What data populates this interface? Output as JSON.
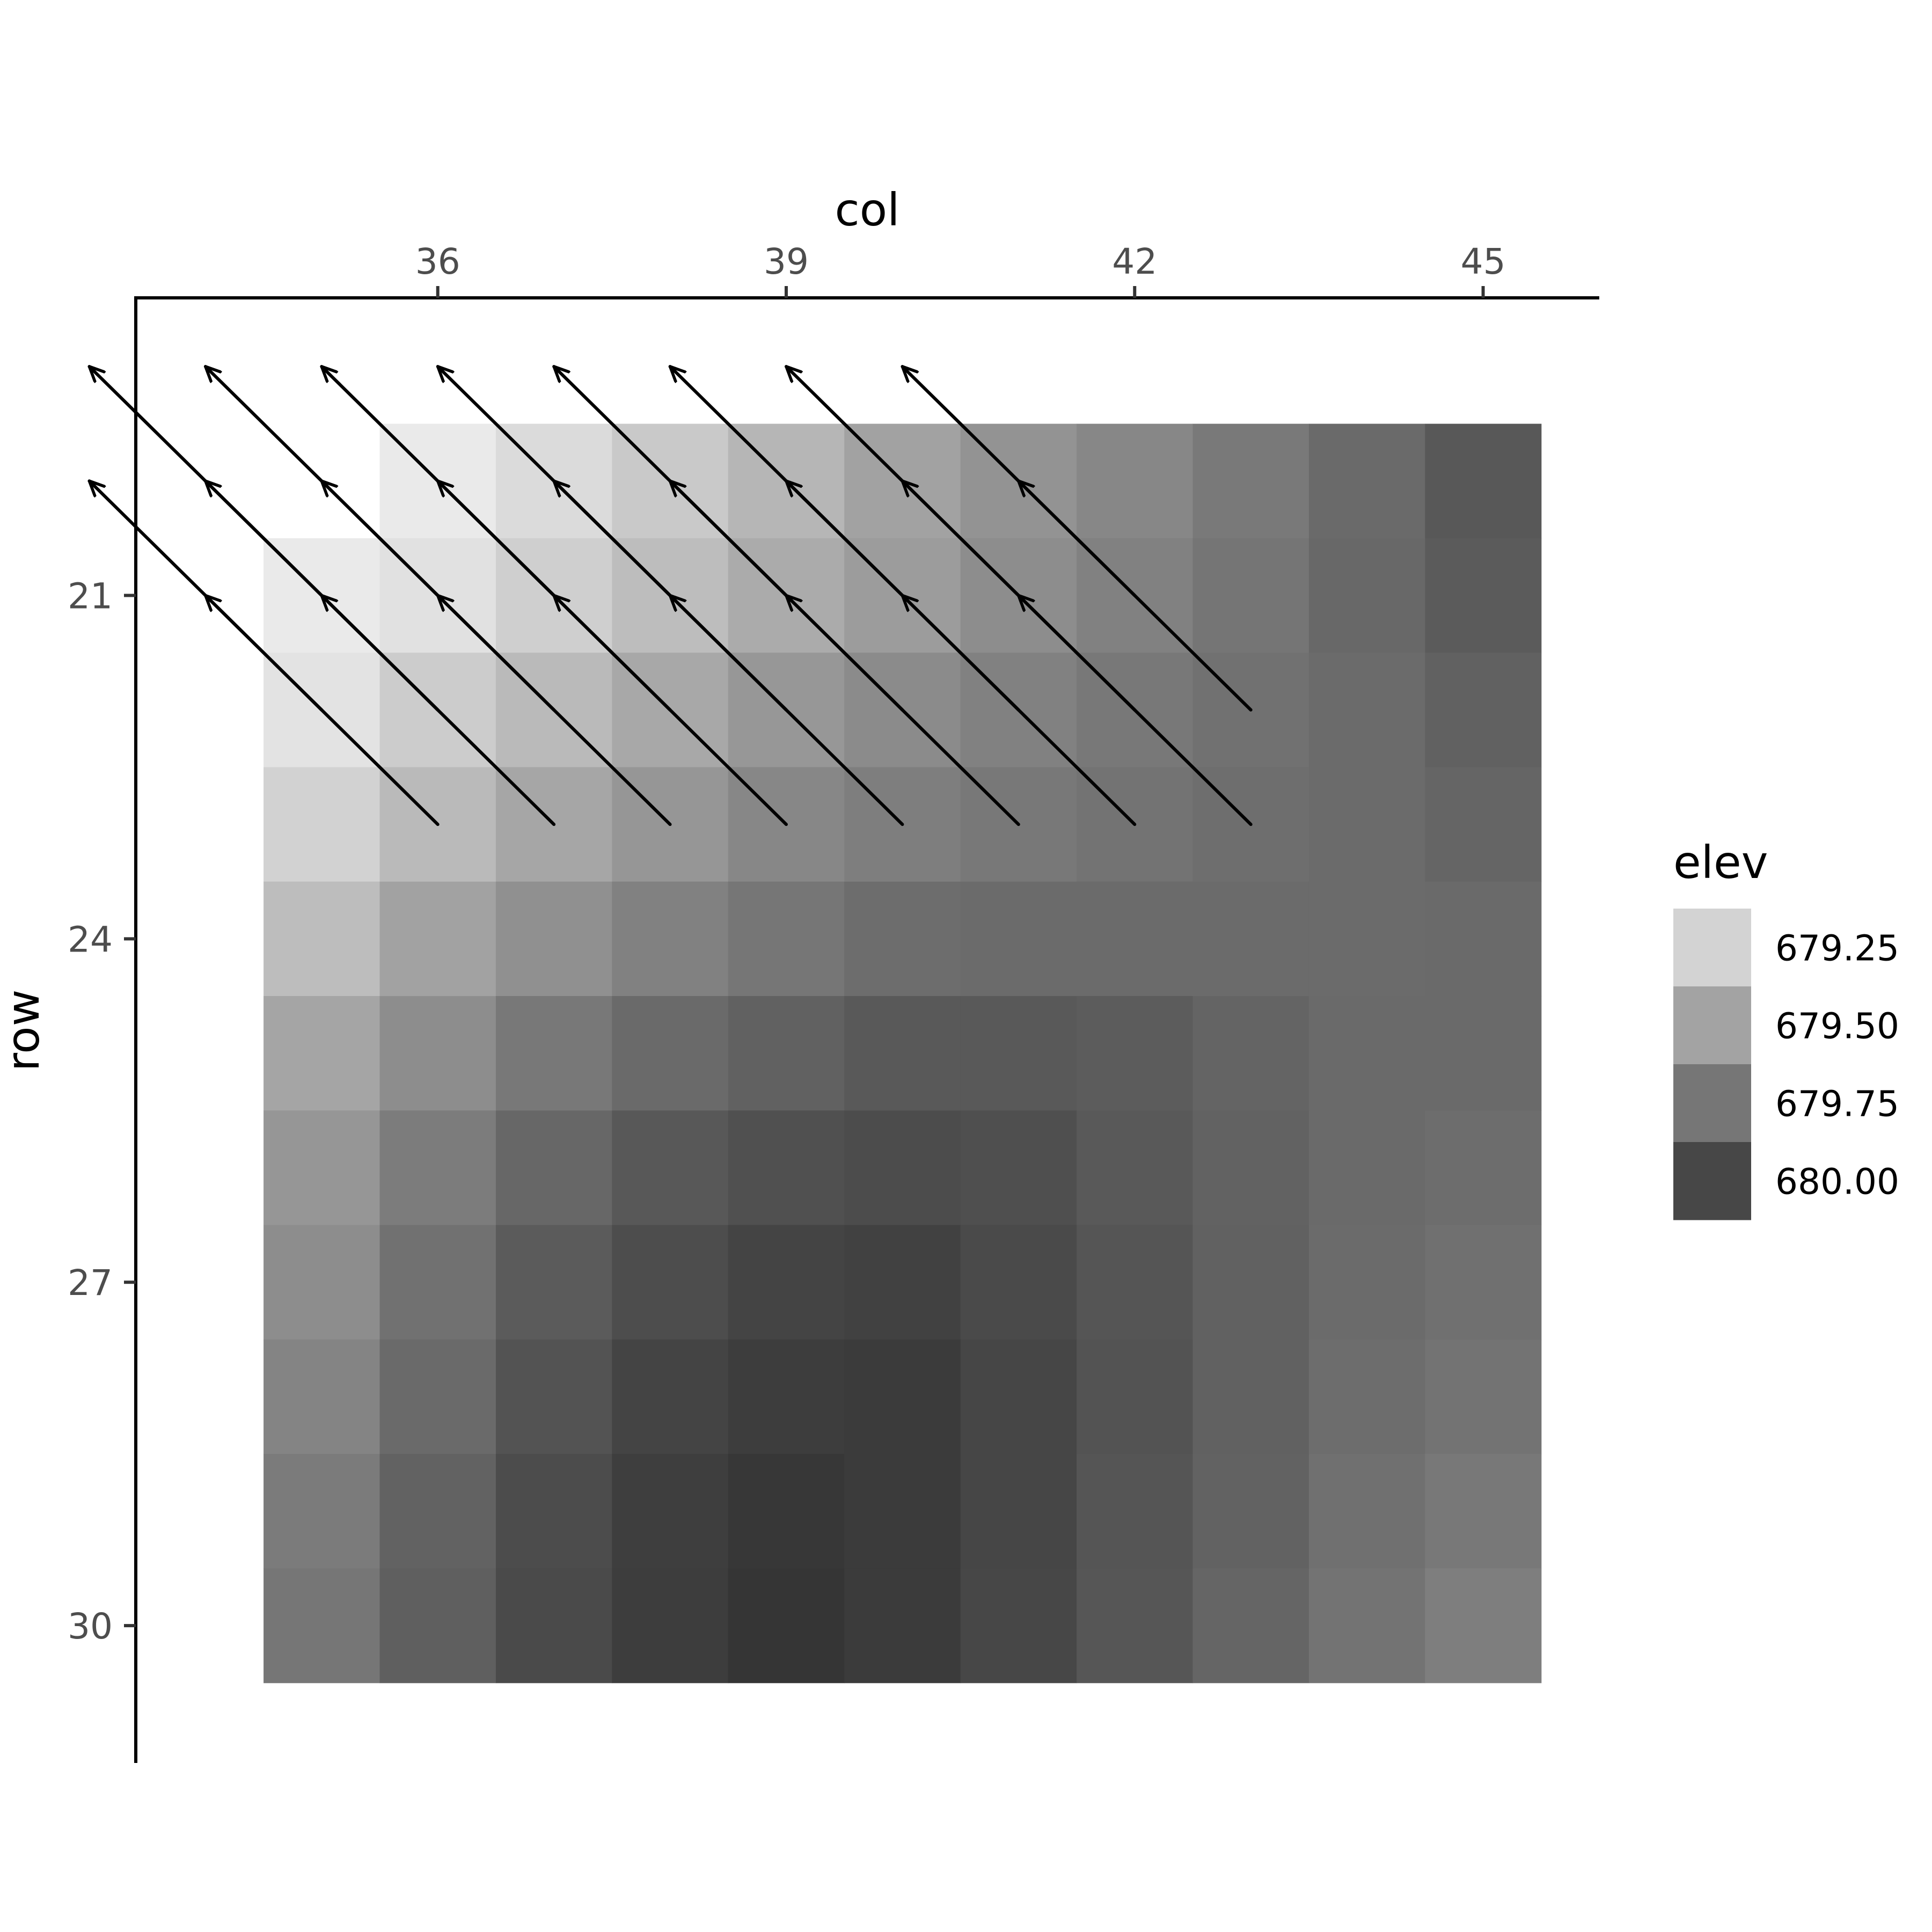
{
  "chart_data": {
    "type": "heatmap",
    "xlabel": "col",
    "ylabel": "row",
    "x_axis_position": "top",
    "y_reversed": true,
    "grid": false,
    "xlim": [
      33.4,
      46.0
    ],
    "ylim": [
      18.4,
      31.2
    ],
    "xticks": [
      36,
      39,
      42,
      45
    ],
    "yticks": [
      21,
      24,
      27,
      30
    ],
    "cols": [
      35,
      36,
      37,
      38,
      39,
      40,
      41,
      42,
      43,
      44,
      45
    ],
    "rows": [
      20,
      21,
      22,
      23,
      24,
      25,
      26,
      27,
      28,
      29,
      30
    ],
    "cells": [
      [
        null,
        679.0,
        679.1,
        679.22,
        679.35,
        679.48,
        679.58,
        679.66,
        679.75,
        679.85,
        679.97
      ],
      [
        679.0,
        679.06,
        679.18,
        679.3,
        679.42,
        679.52,
        679.62,
        679.7,
        679.78,
        679.86,
        679.95
      ],
      [
        679.05,
        679.2,
        679.32,
        679.44,
        679.55,
        679.63,
        679.7,
        679.76,
        679.8,
        679.84,
        679.91
      ],
      [
        679.16,
        679.32,
        679.45,
        679.56,
        679.66,
        679.72,
        679.76,
        679.79,
        679.82,
        679.84,
        679.88
      ],
      [
        679.3,
        679.48,
        679.6,
        679.7,
        679.77,
        679.83,
        679.84,
        679.84,
        679.84,
        679.84,
        679.85
      ],
      [
        679.46,
        679.62,
        679.76,
        679.85,
        679.91,
        679.96,
        679.96,
        679.94,
        679.89,
        679.85,
        679.85
      ],
      [
        679.56,
        679.73,
        679.87,
        679.97,
        680.02,
        680.05,
        680.03,
        679.96,
        679.9,
        679.85,
        679.83
      ],
      [
        679.62,
        679.8,
        679.95,
        680.04,
        680.1,
        680.12,
        680.06,
        679.99,
        679.91,
        679.84,
        679.81
      ],
      [
        679.68,
        679.85,
        680.0,
        680.1,
        680.15,
        680.16,
        680.09,
        680.0,
        679.91,
        679.83,
        679.79
      ],
      [
        679.74,
        679.9,
        680.05,
        680.14,
        680.19,
        680.16,
        680.09,
        679.99,
        679.9,
        679.81,
        679.76
      ],
      [
        679.77,
        679.92,
        680.06,
        680.15,
        680.2,
        680.16,
        680.08,
        679.98,
        679.88,
        679.79,
        679.72
      ]
    ],
    "arrows": [
      {
        "x": 36,
        "y": 23,
        "dx": -2,
        "dy": -2
      },
      {
        "x": 37,
        "y": 23,
        "dx": -2,
        "dy": -2
      },
      {
        "x": 38,
        "y": 23,
        "dx": -2,
        "dy": -2
      },
      {
        "x": 39,
        "y": 23,
        "dx": -2,
        "dy": -2
      },
      {
        "x": 40,
        "y": 23,
        "dx": -2,
        "dy": -2
      },
      {
        "x": 41,
        "y": 23,
        "dx": -2,
        "dy": -2
      },
      {
        "x": 42,
        "y": 23,
        "dx": -2,
        "dy": -2
      },
      {
        "x": 43,
        "y": 23,
        "dx": -2,
        "dy": -2
      },
      {
        "x": 35,
        "y": 22,
        "dx": -2,
        "dy": -2
      },
      {
        "x": 36,
        "y": 22,
        "dx": -2,
        "dy": -2
      },
      {
        "x": 37,
        "y": 22,
        "dx": -2,
        "dy": -2
      },
      {
        "x": 38,
        "y": 22,
        "dx": -2,
        "dy": -2
      },
      {
        "x": 39,
        "y": 22,
        "dx": -2,
        "dy": -2
      },
      {
        "x": 40,
        "y": 22,
        "dx": -2,
        "dy": -2
      },
      {
        "x": 41,
        "y": 22,
        "dx": -2,
        "dy": -2
      },
      {
        "x": 42,
        "y": 22,
        "dx": -2,
        "dy": -2
      },
      {
        "x": 43,
        "y": 22,
        "dx": -2,
        "dy": -2
      },
      {
        "x": 35,
        "y": 21,
        "dx": -2,
        "dy": -2
      },
      {
        "x": 36,
        "y": 21,
        "dx": -2,
        "dy": -2
      },
      {
        "x": 37,
        "y": 21,
        "dx": -2,
        "dy": -2
      },
      {
        "x": 38,
        "y": 21,
        "dx": -2,
        "dy": -2
      },
      {
        "x": 39,
        "y": 21,
        "dx": -2,
        "dy": -2
      },
      {
        "x": 40,
        "y": 21,
        "dx": -2,
        "dy": -2
      },
      {
        "x": 41,
        "y": 21,
        "dx": -2,
        "dy": -2
      },
      {
        "x": 42,
        "y": 21,
        "dx": -2,
        "dy": -2
      }
    ],
    "legend": {
      "title": "elev",
      "position": "right",
      "breaks": [
        {
          "label": "679.25",
          "color": "#d3d3d3"
        },
        {
          "label": "679.50",
          "color": "#a3a3a3"
        },
        {
          "label": "679.75",
          "color": "#767676"
        },
        {
          "label": "680.00",
          "color": "#474747"
        }
      ]
    }
  }
}
